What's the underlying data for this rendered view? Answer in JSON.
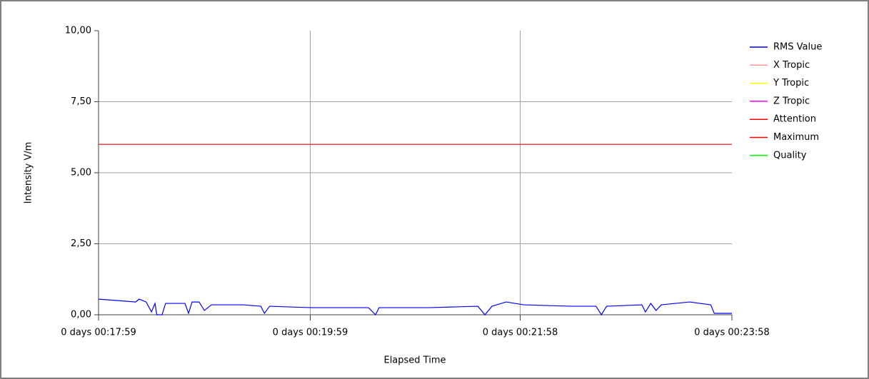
{
  "chart_data": {
    "type": "line",
    "ylabel": "Intensity V/m",
    "xlabel": "Elapsed Time",
    "xlim": [
      1079,
      1438
    ],
    "xticks": [
      {
        "value": 1079,
        "label": "0  days 00:17:59"
      },
      {
        "value": 1199,
        "label": "0  days 00:19:59"
      },
      {
        "value": 1318,
        "label": "0  days 00:21:58"
      },
      {
        "value": 1438,
        "label": "0  days 00:23:58"
      }
    ],
    "ylim": [
      0,
      10
    ],
    "yticks": [
      {
        "value": 0,
        "label": "0,00"
      },
      {
        "value": 2.5,
        "label": "2,50"
      },
      {
        "value": 5,
        "label": "5,00"
      },
      {
        "value": 7.5,
        "label": "7,50"
      },
      {
        "value": 10,
        "label": "10,00"
      }
    ],
    "grid": true,
    "legend": "right",
    "series": [
      {
        "name": "RMS Value",
        "color": "#0000ff",
        "x": [
          1079,
          1090,
          1100,
          1102,
          1106,
          1109,
          1111,
          1112,
          1115,
          1117,
          1128,
          1130,
          1132,
          1136,
          1139,
          1143,
          1161,
          1171,
          1173,
          1176,
          1200,
          1232,
          1236,
          1238,
          1266,
          1294,
          1298,
          1302,
          1310,
          1320,
          1347,
          1361,
          1364,
          1367,
          1387,
          1389,
          1392,
          1395,
          1398,
          1414,
          1426,
          1428,
          1438
        ],
        "values": [
          0.55,
          0.5,
          0.45,
          0.55,
          0.45,
          0.1,
          0.4,
          0.0,
          0.0,
          0.4,
          0.4,
          0.05,
          0.45,
          0.45,
          0.15,
          0.35,
          0.35,
          0.3,
          0.05,
          0.3,
          0.25,
          0.25,
          0.0,
          0.25,
          0.25,
          0.3,
          0.0,
          0.3,
          0.45,
          0.35,
          0.3,
          0.3,
          0.0,
          0.3,
          0.35,
          0.1,
          0.4,
          0.15,
          0.35,
          0.45,
          0.35,
          0.05,
          0.05
        ]
      },
      {
        "name": "X Tropic",
        "color": "#ff9999"
      },
      {
        "name": "Y Tropic",
        "color": "#ffff00"
      },
      {
        "name": "Z Tropic",
        "color": "#ff00ff"
      },
      {
        "name": "Attention",
        "color": "#ff0000",
        "x": [
          1079,
          1438
        ],
        "values": [
          6,
          6
        ]
      },
      {
        "name": "Maximum",
        "color": "#ff0000"
      },
      {
        "name": "Quality",
        "color": "#00ff00"
      }
    ]
  }
}
